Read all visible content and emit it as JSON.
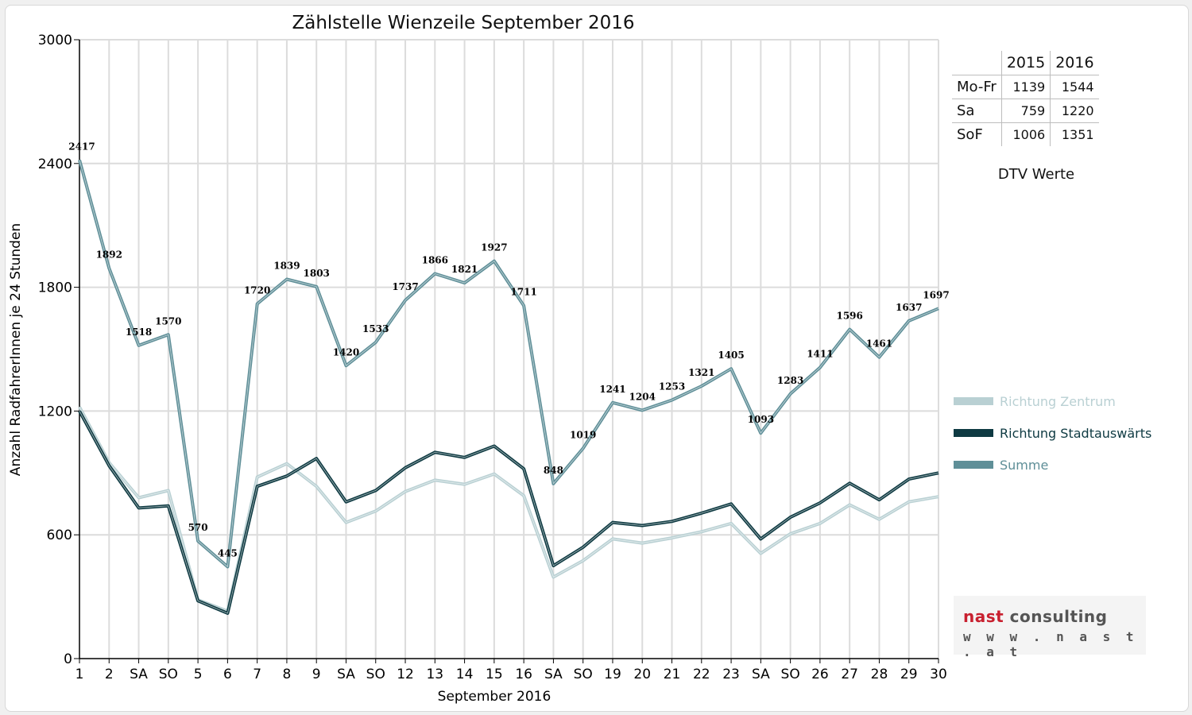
{
  "chart_data": {
    "type": "line",
    "title": "Zählstelle Wienzeile September 2016",
    "xlabel": "September 2016",
    "ylabel": "Anzahl RadfahrerInnen je 24 Stunden",
    "ylim": [
      0,
      3000
    ],
    "yticks": [
      0,
      600,
      1200,
      1800,
      2400,
      3000
    ],
    "categories": [
      "1",
      "2",
      "SA",
      "SO",
      "5",
      "6",
      "7",
      "8",
      "9",
      "SA",
      "SO",
      "12",
      "13",
      "14",
      "15",
      "16",
      "SA",
      "SO",
      "19",
      "20",
      "21",
      "22",
      "23",
      "SA",
      "SO",
      "26",
      "27",
      "28",
      "29",
      "30"
    ],
    "weekend_color": "#ff0000",
    "grid": true,
    "legend_position": "right",
    "series": [
      {
        "name": "Richtung Zentrum",
        "color": "#b9d0d3",
        "values": [
          1220,
          950,
          780,
          815,
          285,
          230,
          880,
          945,
          835,
          660,
          715,
          810,
          865,
          845,
          895,
          790,
          395,
          475,
          580,
          560,
          585,
          615,
          655,
          510,
          605,
          655,
          745,
          675,
          760,
          785
        ]
      },
      {
        "name": "Richtung Stadtauswärts",
        "color": "#0e3a42",
        "values": [
          1200,
          935,
          730,
          740,
          280,
          220,
          835,
          885,
          970,
          760,
          815,
          925,
          1000,
          975,
          1030,
          920,
          450,
          540,
          660,
          645,
          665,
          705,
          750,
          580,
          685,
          755,
          850,
          770,
          870,
          900
        ]
      },
      {
        "name": "Summe",
        "color": "#5f8f98",
        "values": [
          2417,
          1892,
          1518,
          1570,
          570,
          445,
          1720,
          1839,
          1803,
          1420,
          1533,
          1737,
          1866,
          1821,
          1927,
          1711,
          848,
          1019,
          1241,
          1204,
          1253,
          1321,
          1405,
          1093,
          1283,
          1411,
          1596,
          1461,
          1637,
          1697
        ]
      }
    ],
    "data_labels_series": "Summe"
  },
  "dtv": {
    "years": [
      "2015",
      "2016"
    ],
    "rows": [
      {
        "label": "Mo-Fr",
        "v2015": "1139",
        "v2016": "1544"
      },
      {
        "label": "Sa",
        "v2015": "759",
        "v2016": "1220"
      },
      {
        "label": "SoF",
        "v2015": "1006",
        "v2016": "1351"
      }
    ],
    "caption": "DTV Werte"
  },
  "logo": {
    "word1": "nast",
    "word2": "consulting",
    "url": "w w w . n a s t . a t"
  }
}
